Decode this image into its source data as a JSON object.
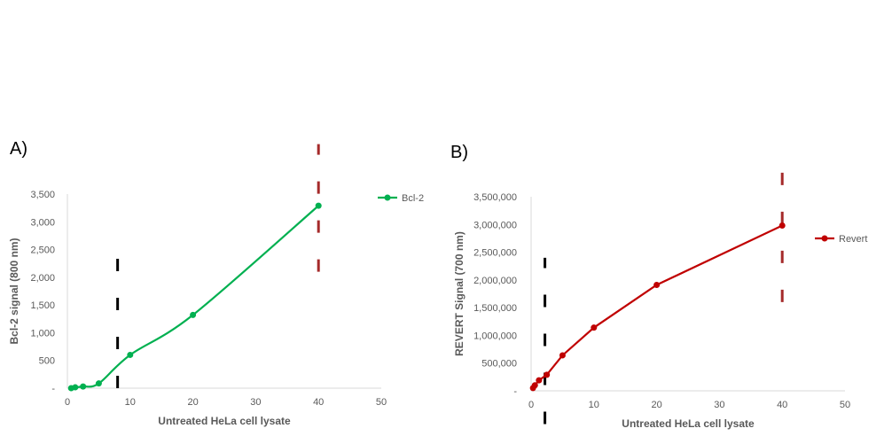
{
  "chart_data": [
    {
      "type": "line",
      "panel_label": "A)",
      "xlabel": "Untreated HeLa cell lysate",
      "ylabel": "Bcl-2 signal (800 nm)",
      "xlim": [
        0,
        50
      ],
      "ylim": [
        0,
        3500
      ],
      "x_ticks": [
        0,
        10,
        20,
        30,
        40,
        50
      ],
      "x_tick_labels": [
        "0",
        "10",
        "20",
        "30",
        "40",
        "50"
      ],
      "y_ticks": [
        0,
        500,
        1000,
        1500,
        2000,
        2500,
        3000,
        3500
      ],
      "y_tick_labels": [
        "-",
        "500",
        "1,000",
        "1,500",
        "2,000",
        "2,500",
        "3,000",
        "3,500"
      ],
      "smooth": true,
      "grid": false,
      "legend_position": "top-right",
      "series": [
        {
          "name": "Bcl-2",
          "color": "#00b050",
          "x": [
            0.6,
            1.25,
            2.5,
            5,
            10,
            20,
            40
          ],
          "y": [
            0,
            15,
            30,
            85,
            600,
            1320,
            3290
          ]
        }
      ],
      "markers": [
        {
          "x": 8,
          "y_range": [
            0,
            2350
          ],
          "color": "#000000"
        },
        {
          "x": 40,
          "y_range": [
            2100,
            4400
          ],
          "color": "#a52a2a"
        }
      ]
    },
    {
      "type": "line",
      "panel_label": "B)",
      "xlabel": "Untreated HeLa cell lysate",
      "ylabel": "REVERT Signal  (700 nm)",
      "xlim": [
        0,
        50
      ],
      "ylim": [
        0,
        3500000
      ],
      "x_ticks": [
        0,
        10,
        20,
        30,
        40,
        50
      ],
      "x_tick_labels": [
        "0",
        "10",
        "20",
        "30",
        "40",
        "50"
      ],
      "y_ticks": [
        0,
        500000,
        1000000,
        1500000,
        2000000,
        2500000,
        3000000,
        3500000
      ],
      "y_tick_labels": [
        "-",
        "500,000",
        "1,000,000",
        "1,500,000",
        "2,000,000",
        "2,500,000",
        "3,000,000",
        "3,500,000"
      ],
      "smooth": false,
      "grid": false,
      "legend_position": "right",
      "series": [
        {
          "name": "Revert",
          "color": "#c00000",
          "x": [
            0.3,
            0.6,
            1.25,
            2.5,
            5,
            10,
            20,
            40
          ],
          "y": [
            50000,
            100000,
            190000,
            290000,
            640000,
            1140000,
            1910000,
            2980000
          ]
        }
      ],
      "markers": [
        {
          "x": 2.2,
          "y_range": [
            -600000,
            2400000
          ],
          "color": "#000000"
        },
        {
          "x": 40,
          "y_range": [
            1600000,
            4000000
          ],
          "color": "#a52a2a"
        }
      ]
    }
  ]
}
